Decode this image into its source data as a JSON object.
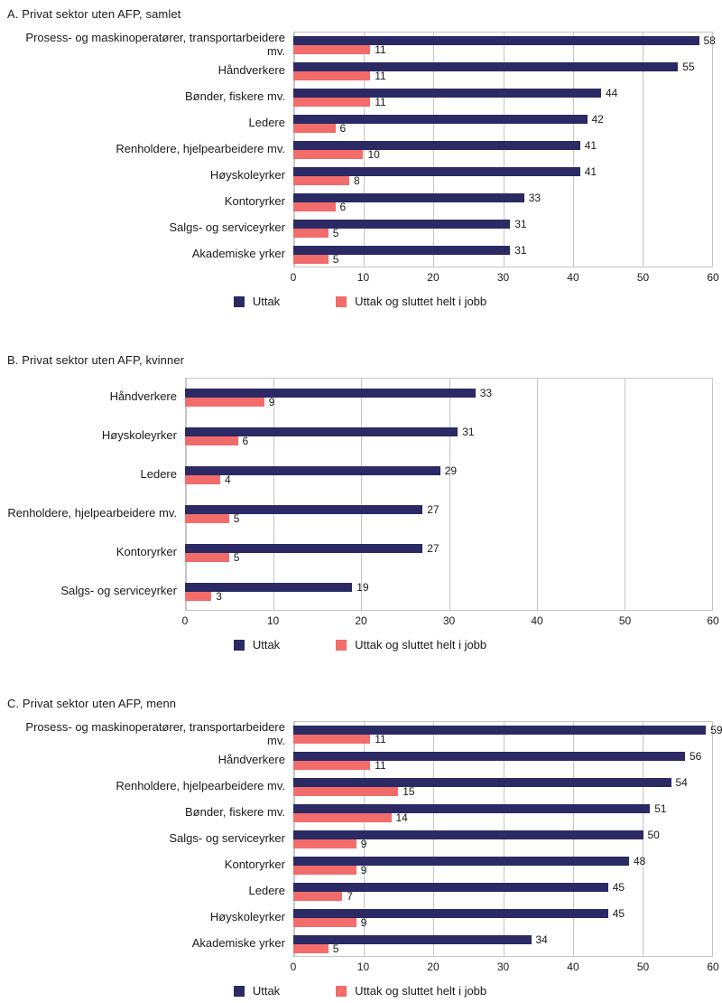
{
  "colors": {
    "uttak": "#2b2a64",
    "sluttet": "#f26c6b",
    "grid": "#c6c6c6",
    "text": "#1a1a1a"
  },
  "chart_data": [
    {
      "type": "bar",
      "orientation": "horizontal",
      "title": "A. Privat sektor uten AFP, samlet",
      "xlim": [
        0,
        60
      ],
      "xticks": [
        0,
        10,
        20,
        30,
        40,
        50,
        60
      ],
      "grid": true,
      "legend_position": "bottom",
      "categories": [
        "Prosess- og maskinoperatører, transportarbeidere mv.",
        "Håndverkere",
        "Bønder, fiskere mv.",
        "Ledere",
        "Renholdere, hjelpearbeidere mv.",
        "Høyskoleyrker",
        "Kontoryrker",
        "Salgs- og serviceyrker",
        "Akademiske yrker"
      ],
      "series": [
        {
          "name": "Uttak",
          "color": "#2b2a64",
          "values": [
            58,
            55,
            44,
            42,
            41,
            41,
            33,
            31,
            31
          ]
        },
        {
          "name": "Uttak og sluttet helt i jobb",
          "color": "#f26c6b",
          "values": [
            11,
            11,
            11,
            6,
            10,
            8,
            6,
            5,
            5
          ]
        }
      ]
    },
    {
      "type": "bar",
      "orientation": "horizontal",
      "title": "B. Privat sektor uten AFP, kvinner",
      "xlim": [
        0,
        60
      ],
      "xticks": [
        0,
        10,
        20,
        30,
        40,
        50,
        60
      ],
      "grid": true,
      "legend_position": "bottom",
      "categories": [
        "Håndverkere",
        "Høyskoleyrker",
        "Ledere",
        "Renholdere, hjelpearbeidere mv.",
        "Kontoryrker",
        "Salgs- og serviceyrker"
      ],
      "series": [
        {
          "name": "Uttak",
          "color": "#2b2a64",
          "values": [
            33,
            31,
            29,
            27,
            27,
            19
          ]
        },
        {
          "name": "Uttak og sluttet helt i jobb",
          "color": "#f26c6b",
          "values": [
            9,
            6,
            4,
            5,
            5,
            3
          ]
        }
      ]
    },
    {
      "type": "bar",
      "orientation": "horizontal",
      "title": "C. Privat sektor uten AFP, menn",
      "xlim": [
        0,
        60
      ],
      "xticks": [
        0,
        10,
        20,
        30,
        40,
        50,
        60
      ],
      "grid": true,
      "legend_position": "bottom",
      "categories": [
        "Prosess- og maskinoperatører, transportarbeidere mv.",
        "Håndverkere",
        "Renholdere, hjelpearbeidere mv.",
        "Bønder, fiskere mv.",
        "Salgs- og serviceyrker",
        "Kontoryrker",
        "Ledere",
        "Høyskoleyrker",
        "Akademiske yrker"
      ],
      "series": [
        {
          "name": "Uttak",
          "color": "#2b2a64",
          "values": [
            59,
            56,
            54,
            51,
            50,
            48,
            45,
            45,
            34
          ]
        },
        {
          "name": "Uttak og sluttet helt i jobb",
          "color": "#f26c6b",
          "values": [
            11,
            11,
            15,
            14,
            9,
            9,
            7,
            9,
            5
          ]
        }
      ]
    }
  ]
}
